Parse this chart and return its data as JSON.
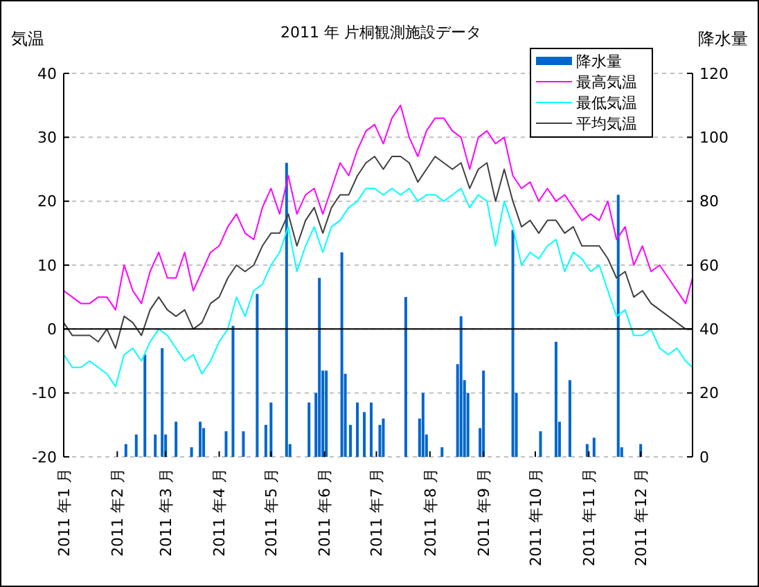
{
  "chart_data": {
    "type": "line",
    "title": "2011 年 片桐観測施設データ",
    "ylabel": "気温",
    "y2label": "降水量",
    "x": [
      "2011-01-01",
      "2011-01-06",
      "2011-01-11",
      "2011-01-16",
      "2011-01-21",
      "2011-01-26",
      "2011-01-31",
      "2011-02-05",
      "2011-02-10",
      "2011-02-15",
      "2011-02-20",
      "2011-02-25",
      "2011-03-02",
      "2011-03-07",
      "2011-03-12",
      "2011-03-17",
      "2011-03-22",
      "2011-03-27",
      "2011-04-01",
      "2011-04-06",
      "2011-04-11",
      "2011-04-16",
      "2011-04-21",
      "2011-04-26",
      "2011-05-01",
      "2011-05-06",
      "2011-05-11",
      "2011-05-16",
      "2011-05-21",
      "2011-05-26",
      "2011-05-31",
      "2011-06-05",
      "2011-06-10",
      "2011-06-15",
      "2011-06-20",
      "2011-06-25",
      "2011-06-30",
      "2011-07-05",
      "2011-07-10",
      "2011-07-15",
      "2011-07-20",
      "2011-07-25",
      "2011-07-30",
      "2011-08-04",
      "2011-08-09",
      "2011-08-14",
      "2011-08-19",
      "2011-08-24",
      "2011-08-29",
      "2011-09-03",
      "2011-09-08",
      "2011-09-13",
      "2011-09-18",
      "2011-09-23",
      "2011-09-28",
      "2011-10-03",
      "2011-10-08",
      "2011-10-13",
      "2011-10-18",
      "2011-10-23",
      "2011-10-28",
      "2011-11-02",
      "2011-11-07",
      "2011-11-12",
      "2011-11-17",
      "2011-11-22",
      "2011-11-27",
      "2011-12-02",
      "2011-12-07",
      "2011-12-12",
      "2011-12-17",
      "2011-12-22",
      "2011-12-27",
      "2011-12-31"
    ],
    "series": [
      {
        "name": "降水量",
        "type": "bar",
        "axis": "y2",
        "color": "#0066cc",
        "x": [
          "2011-02-06",
          "2011-02-12",
          "2011-02-17",
          "2011-02-23",
          "2011-02-27",
          "2011-03-01",
          "2011-03-07",
          "2011-03-16",
          "2011-03-21",
          "2011-03-23",
          "2011-04-05",
          "2011-04-09",
          "2011-04-15",
          "2011-04-23",
          "2011-04-28",
          "2011-05-01",
          "2011-05-10",
          "2011-05-12",
          "2011-05-23",
          "2011-05-27",
          "2011-05-29",
          "2011-05-31",
          "2011-06-02",
          "2011-06-11",
          "2011-06-13",
          "2011-06-16",
          "2011-06-20",
          "2011-06-24",
          "2011-06-28",
          "2011-07-03",
          "2011-07-05",
          "2011-07-18",
          "2011-07-26",
          "2011-07-28",
          "2011-07-30",
          "2011-08-08",
          "2011-08-17",
          "2011-08-19",
          "2011-08-21",
          "2011-08-23",
          "2011-08-30",
          "2011-09-01",
          "2011-09-18",
          "2011-09-20",
          "2011-10-04",
          "2011-10-13",
          "2011-10-15",
          "2011-10-21",
          "2011-10-31",
          "2011-11-04",
          "2011-11-18",
          "2011-11-20",
          "2011-12-01"
        ],
        "values": [
          4,
          7,
          32,
          7,
          34,
          7,
          11,
          3,
          11,
          9,
          8,
          41,
          8,
          51,
          10,
          17,
          92,
          4,
          17,
          20,
          56,
          27,
          27,
          64,
          26,
          10,
          17,
          14,
          17,
          10,
          12,
          50,
          12,
          20,
          7,
          3,
          29,
          44,
          24,
          20,
          9,
          27,
          71,
          20,
          8,
          36,
          11,
          24,
          4,
          6,
          82,
          3,
          4
        ]
      },
      {
        "name": "最高気温",
        "color": "#ff00ff",
        "values": [
          6,
          5,
          4,
          4,
          5,
          5,
          3,
          10,
          6,
          4,
          9,
          12,
          8,
          8,
          12,
          6,
          9,
          12,
          13,
          16,
          18,
          15,
          14,
          19,
          22,
          18,
          24,
          18,
          21,
          22,
          18,
          22,
          26,
          24,
          28,
          31,
          32,
          29,
          33,
          35,
          30,
          27,
          31,
          33,
          33,
          31,
          30,
          25,
          30,
          31,
          29,
          30,
          24,
          22,
          23,
          20,
          22,
          20,
          21,
          19,
          17,
          18,
          17,
          20,
          14,
          16,
          10,
          13,
          9,
          10,
          8,
          6,
          4,
          8
        ]
      },
      {
        "name": "最低気温",
        "color": "#00ffff",
        "values": [
          -4,
          -6,
          -6,
          -5,
          -6,
          -7,
          -9,
          -4,
          -3,
          -5,
          -2,
          0,
          -1,
          -3,
          -5,
          -4,
          -7,
          -5,
          -2,
          0,
          5,
          2,
          6,
          7,
          10,
          12,
          16,
          9,
          13,
          16,
          12,
          16,
          17,
          19,
          20,
          22,
          22,
          21,
          22,
          21,
          22,
          20,
          21,
          21,
          20,
          21,
          22,
          19,
          21,
          20,
          13,
          20,
          16,
          10,
          12,
          11,
          13,
          14,
          9,
          12,
          11,
          9,
          10,
          6,
          2,
          3,
          -1,
          -1,
          0,
          -3,
          -4,
          -3,
          -5,
          -6
        ]
      },
      {
        "name": "平均気温",
        "color": "#404040",
        "values": [
          1,
          -1,
          -1,
          -1,
          -2,
          0,
          -3,
          2,
          1,
          -1,
          3,
          5,
          3,
          2,
          3,
          0,
          1,
          4,
          5,
          8,
          10,
          9,
          10,
          13,
          15,
          15,
          18,
          13,
          17,
          19,
          15,
          19,
          21,
          21,
          24,
          26,
          27,
          25,
          27,
          27,
          26,
          23,
          25,
          27,
          26,
          25,
          26,
          22,
          25,
          26,
          20,
          25,
          20,
          16,
          17,
          15,
          17,
          17,
          15,
          16,
          13,
          13,
          13,
          11,
          8,
          9,
          5,
          6,
          4,
          3,
          2,
          1,
          0,
          0
        ]
      }
    ],
    "xlim": [
      "2011-01-01",
      "2011-12-31"
    ],
    "xticks": [
      {
        "value": "2011-01-01",
        "label": "2011 年1 月"
      },
      {
        "value": "2011-02-01",
        "label": "2011 年2 月"
      },
      {
        "value": "2011-03-01",
        "label": "2011 年3 月"
      },
      {
        "value": "2011-04-01",
        "label": "2011 年4 月"
      },
      {
        "value": "2011-05-01",
        "label": "2011 年5 月"
      },
      {
        "value": "2011-06-01",
        "label": "2011 年6 月"
      },
      {
        "value": "2011-07-01",
        "label": "2011 年7 月"
      },
      {
        "value": "2011-08-01",
        "label": "2011 年8 月"
      },
      {
        "value": "2011-09-01",
        "label": "2011 年9 月"
      },
      {
        "value": "2011-10-01",
        "label": "2011 年10 月"
      },
      {
        "value": "2011-11-01",
        "label": "2011 年11 月"
      },
      {
        "value": "2011-12-01",
        "label": "2011 年12 月"
      }
    ],
    "ylim": [
      -20,
      40
    ],
    "yticks": [
      -20,
      -10,
      0,
      10,
      20,
      30,
      40
    ],
    "y2lim": [
      0,
      120
    ],
    "y2ticks": [
      0,
      20,
      40,
      60,
      80,
      100,
      120
    ],
    "ref_lines": [
      {
        "axis": "y",
        "value": 0,
        "color": "#000000"
      }
    ],
    "grid": "y",
    "legend": "top right",
    "line_style": "solid",
    "marker": "none"
  }
}
